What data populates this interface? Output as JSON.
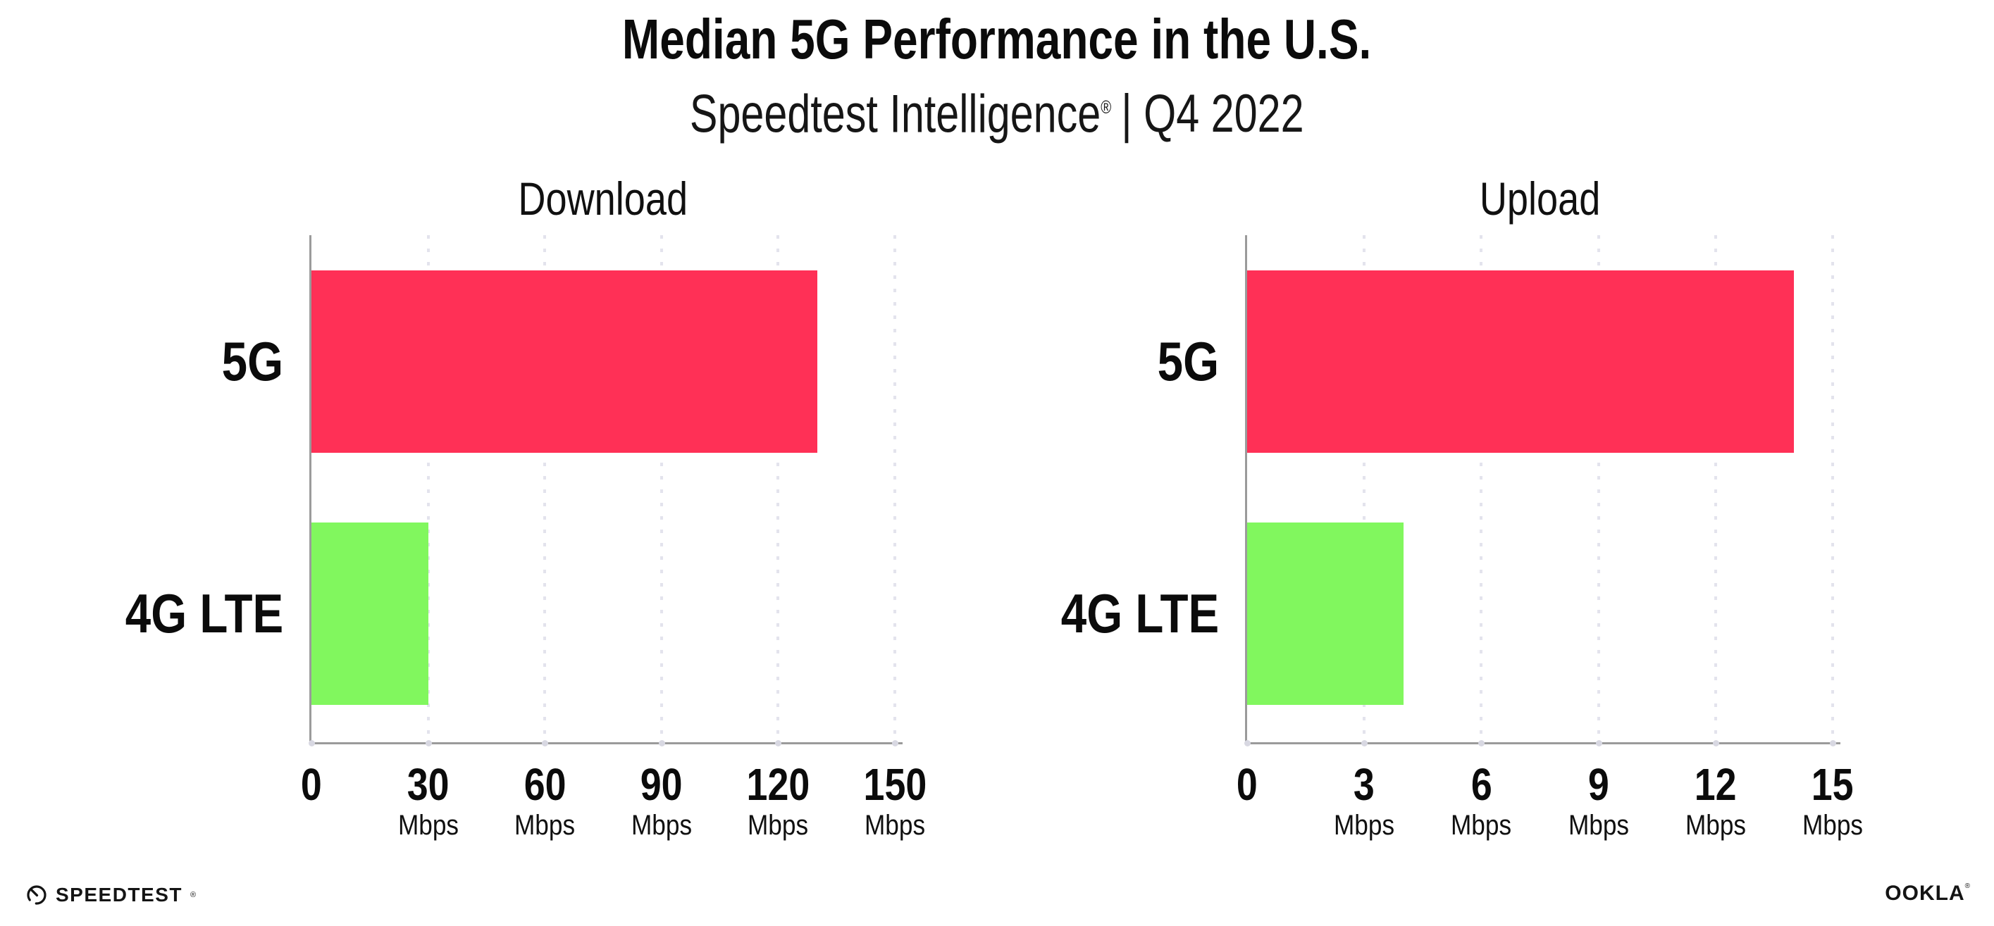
{
  "header": {
    "title": "Median 5G Performance in the U.S.",
    "subtitle_brand": "Speedtest Intelligence",
    "subtitle_reg": "®",
    "subtitle_rest": "| Q4 2022"
  },
  "chart_data": [
    {
      "type": "bar",
      "orientation": "horizontal",
      "title": "Download",
      "categories": [
        "5G",
        "4G LTE"
      ],
      "values": [
        130,
        30
      ],
      "unit": "Mbps",
      "xlabel": "",
      "ylabel": "",
      "xlim": [
        0,
        150
      ],
      "ticks": [
        0,
        30,
        60,
        90,
        120,
        150
      ],
      "bar_colors": [
        "#FF3056",
        "#81F75E"
      ],
      "grid": "dotted-vertical",
      "legend": "none"
    },
    {
      "type": "bar",
      "orientation": "horizontal",
      "title": "Upload",
      "categories": [
        "5G",
        "4G LTE"
      ],
      "values": [
        14,
        4
      ],
      "unit": "Mbps",
      "xlabel": "",
      "ylabel": "",
      "xlim": [
        0,
        15
      ],
      "ticks": [
        0,
        3,
        6,
        9,
        12,
        15
      ],
      "bar_colors": [
        "#FF3056",
        "#81F75E"
      ],
      "grid": "dotted-vertical",
      "legend": "none"
    }
  ],
  "colors": {
    "bar_5g": "#FF3056",
    "bar_4g_lte": "#81F75E",
    "gridline": "#E3E3ED",
    "axis": "#9B9B9B",
    "tick_dot": "#D8D8E2",
    "text": "#0B0B0B"
  },
  "footer": {
    "speedtest_label": "SPEEDTEST",
    "speedtest_reg": "®",
    "ookla_label": "OOKLA",
    "ookla_reg": "®"
  }
}
